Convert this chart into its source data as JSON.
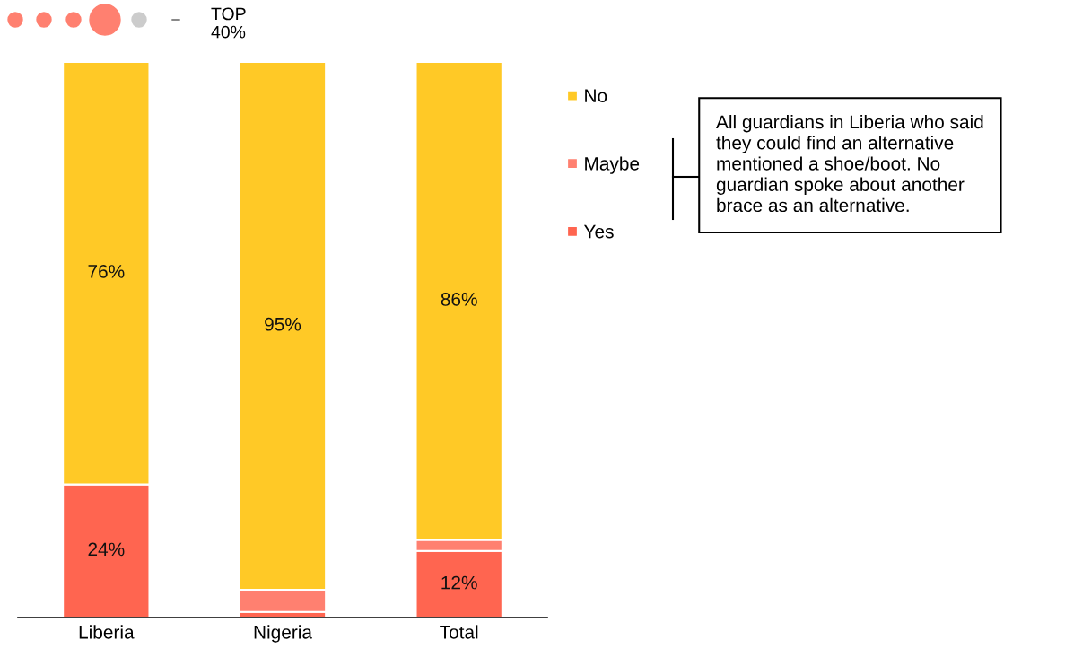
{
  "chart_data": {
    "type": "bar",
    "stacked": true,
    "categories": [
      "Liberia",
      "Nigeria",
      "Total"
    ],
    "series": [
      {
        "name": "Yes",
        "color": "#ff6550",
        "values": [
          24,
          1,
          12
        ],
        "value_labels": [
          "24%",
          null,
          "12%"
        ]
      },
      {
        "name": "Maybe",
        "color": "#ff8070",
        "values": [
          0,
          4,
          2
        ],
        "value_labels": [
          null,
          null,
          null
        ]
      },
      {
        "name": "No",
        "color": "#ffc926",
        "values": [
          76,
          95,
          86
        ],
        "value_labels": [
          "76%",
          "95%",
          "86%"
        ]
      }
    ],
    "legend": "right",
    "annotations": [
      "TOP\n40%",
      "All guardians in Liberia who said\nthey could find an alternative\nmentioned a shoe/boot. No\nguardian spoke about another\nbrace as an alternative."
    ]
  }
}
